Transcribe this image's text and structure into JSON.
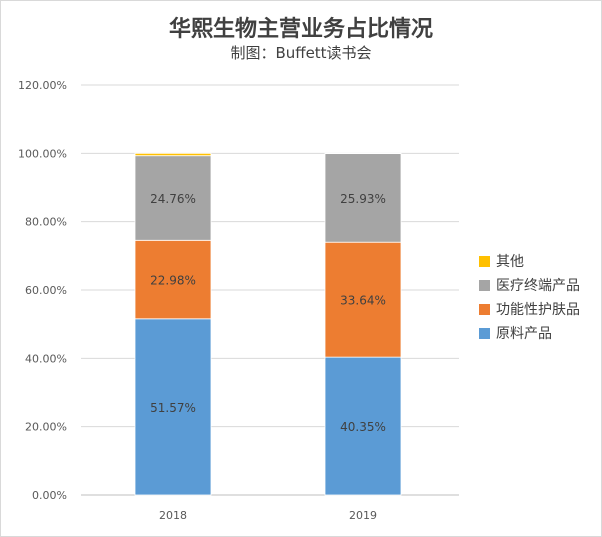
{
  "chart_data": {
    "type": "bar",
    "stacked": true,
    "title": "华熙生物主营业务占比情况",
    "subtitle": "制图：Buffett读书会",
    "categories": [
      "2018",
      "2019"
    ],
    "ylim": [
      0,
      1.2
    ],
    "y_ticks": [
      "0.00%",
      "20.00%",
      "40.00%",
      "60.00%",
      "80.00%",
      "100.00%",
      "120.00%"
    ],
    "grid": true,
    "legend_position": "right",
    "series": [
      {
        "name": "原料产品",
        "color": "#5b9bd5",
        "values": [
          0.5157,
          0.4035
        ],
        "labels": [
          "51.57%",
          "40.35%"
        ]
      },
      {
        "name": "功能性护肤品",
        "color": "#ed7d31",
        "values": [
          0.2298,
          0.3364
        ],
        "labels": [
          "22.98%",
          "33.64%"
        ]
      },
      {
        "name": "医疗终端产品",
        "color": "#a5a5a5",
        "values": [
          0.2476,
          0.2593
        ],
        "labels": [
          "24.76%",
          "25.93%"
        ]
      },
      {
        "name": "其他",
        "color": "#ffc000",
        "values": [
          0.0069,
          0.0008
        ],
        "labels": [
          "",
          ""
        ]
      }
    ]
  }
}
